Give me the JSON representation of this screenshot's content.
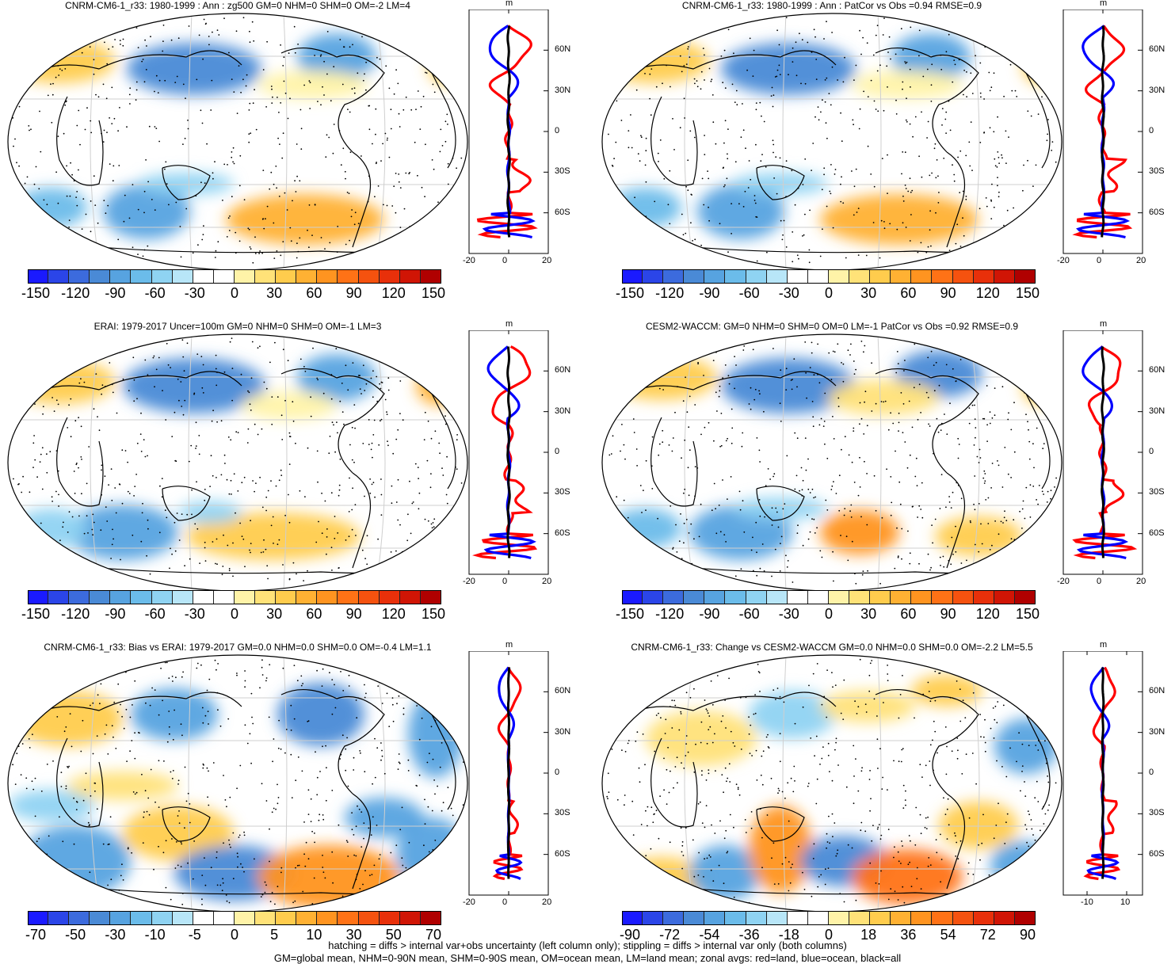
{
  "panels": [
    {
      "title": "CNRM-CM6-1_r33: 1980-1999 : Ann : zg500 GM=0 NHM=0 SHM=0 OM=-2 LM=4",
      "scale": 1,
      "xticks": [
        "-20",
        "0",
        "20"
      ],
      "lat_labels": [
        "60N",
        "30N",
        "0",
        "30S",
        "60S"
      ],
      "units": "m",
      "cbar_labels": [
        "-150",
        "-120",
        "-90",
        "-60",
        "-30",
        "0",
        "30",
        "60",
        "90",
        "120",
        "150"
      ]
    },
    {
      "title": "CNRM-CM6-1_r33: 1980-1999 : Ann : PatCor vs Obs =0.94 RMSE=0.9",
      "scale": 1,
      "xticks": [
        "-20",
        "0",
        "20"
      ],
      "lat_labels": [
        "60N",
        "30N",
        "0",
        "30S",
        "60S"
      ],
      "units": "m",
      "cbar_labels": [
        "-150",
        "-120",
        "-90",
        "-60",
        "-30",
        "0",
        "30",
        "60",
        "90",
        "120",
        "150"
      ]
    },
    {
      "title": "ERAI: 1979-2017 Uncer=100m GM=0 NHM=0 SHM=0 OM=-1 LM=3",
      "scale": 1,
      "xticks": [
        "-20",
        "0",
        "20"
      ],
      "lat_labels": [
        "60N",
        "30N",
        "0",
        "30S",
        "60S"
      ],
      "units": "m",
      "cbar_labels": [
        "-150",
        "-120",
        "-90",
        "-60",
        "-30",
        "0",
        "30",
        "60",
        "90",
        "120",
        "150"
      ]
    },
    {
      "title": "CESM2-WACCM: GM=0 NHM=0 SHM=0 OM=0 LM=-1 PatCor vs Obs =0.92 RMSE=0.9",
      "scale": 1,
      "xticks": [
        "-20",
        "0",
        "20"
      ],
      "lat_labels": [
        "60N",
        "30N",
        "0",
        "30S",
        "60S"
      ],
      "units": "m",
      "cbar_labels": [
        "-150",
        "-120",
        "-90",
        "-60",
        "-30",
        "0",
        "30",
        "60",
        "90",
        "120",
        "150"
      ]
    },
    {
      "title": "CNRM-CM6-1_r33: Bias vs ERAI: 1979-2017 GM=0.0 NHM=0.0 SHM=0.0 OM=-0.4 LM=1.1",
      "scale": 0.5,
      "xticks": [
        "-20",
        "0",
        "20"
      ],
      "lat_labels": [
        "60N",
        "30N",
        "0",
        "30S",
        "60S"
      ],
      "units": "m",
      "cbar_labels": [
        "-70",
        "-50",
        "-30",
        "-10",
        "-5",
        "0",
        "5",
        "10",
        "30",
        "50",
        "70"
      ]
    },
    {
      "title": "CNRM-CM6-1_r33: Change vs CESM2-WACCM GM=0.0 NHM=0.0 SHM=0.0 OM=-2.2 LM=5.5",
      "scale": 0.6,
      "xticks": [
        "-10",
        "10"
      ],
      "lat_labels": [
        "60N",
        "30N",
        "0",
        "30S",
        "60S"
      ],
      "units": "m",
      "cbar_labels": [
        "-90",
        "-72",
        "-54",
        "-36",
        "-18",
        "0",
        "18",
        "36",
        "54",
        "72",
        "90"
      ]
    }
  ],
  "colorbar_colors": [
    "#1a1aff",
    "#2b45e8",
    "#3c6bdd",
    "#4a8ad6",
    "#57a3e0",
    "#6bbcea",
    "#8fd3f2",
    "#b8e6f8",
    "#ffffff",
    "#ffffff",
    "#fff3a8",
    "#ffe278",
    "#ffcc4d",
    "#ffb133",
    "#ff9420",
    "#ff7216",
    "#f5520f",
    "#e8300a",
    "#d01505",
    "#b00000"
  ],
  "colors": {
    "red": "#ff0000",
    "blue": "#0000ff",
    "black": "#000000"
  },
  "footer": [
    "hatching = diffs > internal var+obs uncertainty (left column only); stippling = diffs > internal var only (both columns)",
    "GM=global mean, NHM=0-90N mean, SHM=0-90S mean, OM=ocean mean, LM=land mean; zonal avgs: red=land, blue=ocean, black=all"
  ]
}
